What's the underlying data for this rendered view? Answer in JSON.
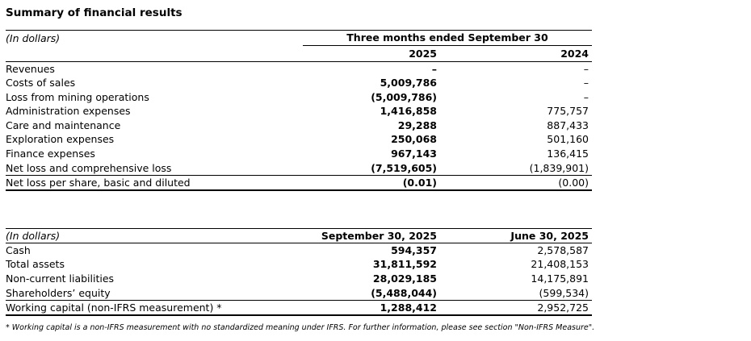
{
  "title": "Summary of financial results",
  "income_statement": {
    "unit_label": "(In dollars)",
    "period_header": "Three months ended September 30",
    "columns": [
      "2025",
      "2024"
    ],
    "rows": [
      {
        "label": "Revenues",
        "values": [
          "–",
          "–"
        ]
      },
      {
        "label": "Costs of sales",
        "values": [
          "5,009,786",
          "–"
        ]
      },
      {
        "label": "Loss from mining operations",
        "values": [
          "(5,009,786)",
          "–"
        ]
      },
      {
        "label": "Administration expenses",
        "values": [
          "1,416,858",
          "775,757"
        ]
      },
      {
        "label": "Care and maintenance",
        "values": [
          "29,288",
          "887,433"
        ]
      },
      {
        "label": "Exploration expenses",
        "values": [
          "250,068",
          "501,160"
        ]
      },
      {
        "label": "Finance expenses",
        "values": [
          "967,143",
          "136,415"
        ]
      },
      {
        "label": "Net loss and comprehensive loss",
        "values": [
          "(7,519,605)",
          "(1,839,901)"
        ]
      },
      {
        "label": "Net loss per share, basic and diluted",
        "values": [
          "(0.01)",
          "(0.00)"
        ],
        "rule_above": true
      }
    ]
  },
  "balance_sheet": {
    "unit_label": "(In dollars)",
    "columns": [
      "September 30, 2025",
      "June 30, 2025"
    ],
    "rows": [
      {
        "label": "Cash",
        "values": [
          "594,357",
          "2,578,587"
        ]
      },
      {
        "label": "Total assets",
        "values": [
          "31,811,592",
          "21,408,153"
        ]
      },
      {
        "label": "Non-current liabilities",
        "values": [
          "28,029,185",
          "14,175,891"
        ]
      },
      {
        "label": "Shareholders’ equity",
        "values": [
          "(5,488,044)",
          "(599,534)"
        ]
      },
      {
        "label": "Working capital (non-IFRS measurement) *",
        "values": [
          "1,288,412",
          "2,952,725"
        ],
        "rule_above": true
      }
    ]
  },
  "footnote": "* Working capital is a non-IFRS measurement with no standardized meaning under IFRS. For further information, please see section \"Non-IFRS Measure\"."
}
